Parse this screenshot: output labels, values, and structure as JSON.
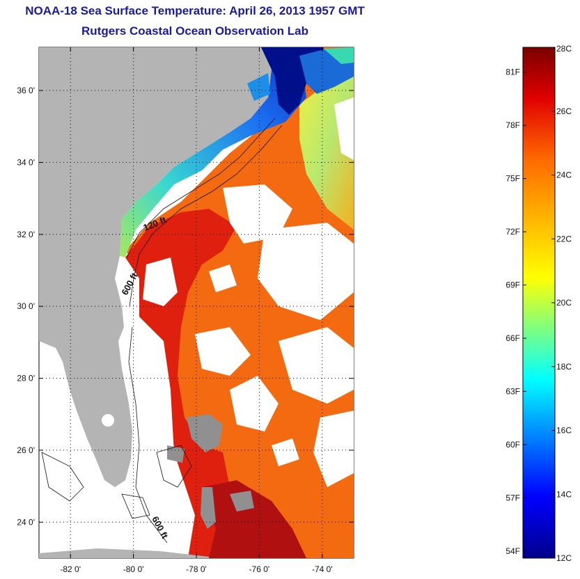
{
  "title": {
    "line1": "NOAA-18 Sea Surface Temperature:  April 26, 2013 1957 GMT",
    "line2": "Rutgers Coastal Ocean Observation Lab"
  },
  "map": {
    "lat_labels": [
      {
        "value": 36,
        "label": "36 0'"
      },
      {
        "value": 34,
        "label": "34 0'"
      },
      {
        "value": 32,
        "label": "32 0'"
      },
      {
        "value": 30,
        "label": "30 0'"
      },
      {
        "value": 28,
        "label": "28 0'"
      },
      {
        "value": 26,
        "label": "26 0'"
      },
      {
        "value": 24,
        "label": "24 0'"
      }
    ],
    "lon_labels": [
      {
        "value": -82,
        "label": "-82 0'"
      },
      {
        "value": -80,
        "label": "-80 0'"
      },
      {
        "value": -78,
        "label": "-78 0'"
      },
      {
        "value": -76,
        "label": "-76 0'"
      },
      {
        "value": -74,
        "label": "-74 0'"
      }
    ],
    "lat_range": [
      23.0,
      37.2
    ],
    "lon_range": [
      -83.0,
      -73.0
    ],
    "contours": {
      "label_120": "120 ft",
      "label_600a": "600 ft",
      "label_600b": "600 ft"
    },
    "colors": {
      "land": "#b4b4b4",
      "cloud": "#ffffff",
      "gulf_stream": "#e0200e",
      "warm_water": "#f36a10",
      "shelf_cold": "#1e6ff0",
      "deep_cold": "#00108a"
    }
  },
  "colorbar": {
    "celsius": [
      "28C",
      "26C",
      "24C",
      "22C",
      "20C",
      "18C",
      "16C",
      "14C",
      "12C"
    ],
    "fahrenheit": [
      "81F",
      "78F",
      "75F",
      "72F",
      "69F",
      "66F",
      "63F",
      "60F",
      "57F",
      "54F"
    ],
    "range_c": [
      12,
      28
    ]
  }
}
